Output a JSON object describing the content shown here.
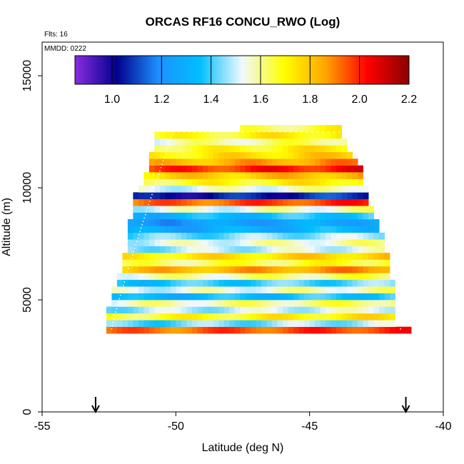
{
  "chart_data": {
    "type": "heatmap",
    "title": "ORCAS RF16 CONCU_RWO (Log)",
    "flights_label": "Flts: 16",
    "date_label": "MMDD: 0222",
    "xlabel": "Latitude (deg N)",
    "ylabel": "Altitude (m)",
    "xlim": [
      -55,
      -40
    ],
    "ylim": [
      0,
      16500
    ],
    "x_ticks": [
      -55,
      -50,
      -45,
      -40
    ],
    "x_tick_labels": [
      "-55",
      "-50",
      "-45",
      "-40"
    ],
    "y_ticks": [
      0,
      5000,
      10000,
      15000
    ],
    "y_tick_labels": [
      "0",
      "5000",
      "10000",
      "15000"
    ],
    "colorbar": {
      "range": [
        0.85,
        2.2
      ],
      "ticks": [
        1.0,
        1.2,
        1.4,
        1.6,
        1.8,
        2.0,
        2.2
      ],
      "tick_labels": [
        "1.0",
        "1.2",
        "1.4",
        "1.6",
        "1.8",
        "2.0",
        "2.2"
      ],
      "colors": [
        "#8a2be2",
        "#00008b",
        "#1e90ff",
        "#00bfff",
        "#f0f8ff",
        "#ffff00",
        "#ffa500",
        "#ff0000",
        "#8b0000"
      ]
    },
    "arrows_latitude": [
      -53.0,
      -41.4
    ],
    "flight_path_color": "#ffffff",
    "rows": [
      {
        "alt": 3650,
        "lat_min": -52.6,
        "lat_max": -41.2,
        "level": 1.95
      },
      {
        "alt": 3950,
        "lat_min": -52.6,
        "lat_max": -41.8,
        "level": 1.45
      },
      {
        "alt": 4250,
        "lat_min": -52.6,
        "lat_max": -41.8,
        "level": 1.7
      },
      {
        "alt": 4550,
        "lat_min": -52.6,
        "lat_max": -41.8,
        "level": 1.5
      },
      {
        "alt": 4850,
        "lat_min": -52.4,
        "lat_max": -41.8,
        "level": 1.6
      },
      {
        "alt": 5150,
        "lat_min": -52.4,
        "lat_max": -41.8,
        "level": 1.35
      },
      {
        "alt": 5450,
        "lat_min": -52.4,
        "lat_max": -41.8,
        "level": 1.55
      },
      {
        "alt": 5750,
        "lat_min": -52.2,
        "lat_max": -41.8,
        "level": 1.4
      },
      {
        "alt": 6050,
        "lat_min": -52.2,
        "lat_max": -42.0,
        "level": 1.6
      },
      {
        "alt": 6350,
        "lat_min": -52.0,
        "lat_max": -42.0,
        "level": 1.85
      },
      {
        "alt": 6650,
        "lat_min": -52.0,
        "lat_max": -42.0,
        "level": 1.65
      },
      {
        "alt": 6950,
        "lat_min": -52.0,
        "lat_max": -42.0,
        "level": 1.75
      },
      {
        "alt": 7250,
        "lat_min": -51.8,
        "lat_max": -42.2,
        "level": 1.5
      },
      {
        "alt": 7550,
        "lat_min": -51.8,
        "lat_max": -42.2,
        "level": 1.55
      },
      {
        "alt": 7850,
        "lat_min": -51.8,
        "lat_max": -42.2,
        "level": 1.45
      },
      {
        "alt": 8150,
        "lat_min": -51.8,
        "lat_max": -42.4,
        "level": 1.3
      },
      {
        "alt": 8450,
        "lat_min": -51.8,
        "lat_max": -42.4,
        "level": 1.25
      },
      {
        "alt": 8750,
        "lat_min": -51.6,
        "lat_max": -42.6,
        "level": 1.35
      },
      {
        "alt": 9050,
        "lat_min": -51.6,
        "lat_max": -42.6,
        "level": 1.55
      },
      {
        "alt": 9350,
        "lat_min": -51.6,
        "lat_max": -42.8,
        "level": 1.95
      },
      {
        "alt": 9650,
        "lat_min": -51.6,
        "lat_max": -42.8,
        "level": 1.05
      },
      {
        "alt": 9950,
        "lat_min": -51.4,
        "lat_max": -42.8,
        "level": 1.55
      },
      {
        "alt": 10250,
        "lat_min": -51.2,
        "lat_max": -43.0,
        "level": 1.7
      },
      {
        "alt": 10550,
        "lat_min": -51.2,
        "lat_max": -43.0,
        "level": 1.8
      },
      {
        "alt": 10850,
        "lat_min": -51.0,
        "lat_max": -43.0,
        "level": 2.0
      },
      {
        "alt": 11150,
        "lat_min": -51.0,
        "lat_max": -43.2,
        "level": 1.85
      },
      {
        "alt": 11450,
        "lat_min": -51.0,
        "lat_max": -43.4,
        "level": 1.75
      },
      {
        "alt": 11750,
        "lat_min": -50.8,
        "lat_max": -43.6,
        "level": 1.7
      },
      {
        "alt": 12050,
        "lat_min": -50.8,
        "lat_max": -43.6,
        "level": 1.6
      },
      {
        "alt": 12350,
        "lat_min": -50.8,
        "lat_max": -43.8,
        "level": 1.7
      },
      {
        "alt": 12650,
        "lat_min": -47.6,
        "lat_max": -43.8,
        "level": 1.65
      }
    ]
  }
}
